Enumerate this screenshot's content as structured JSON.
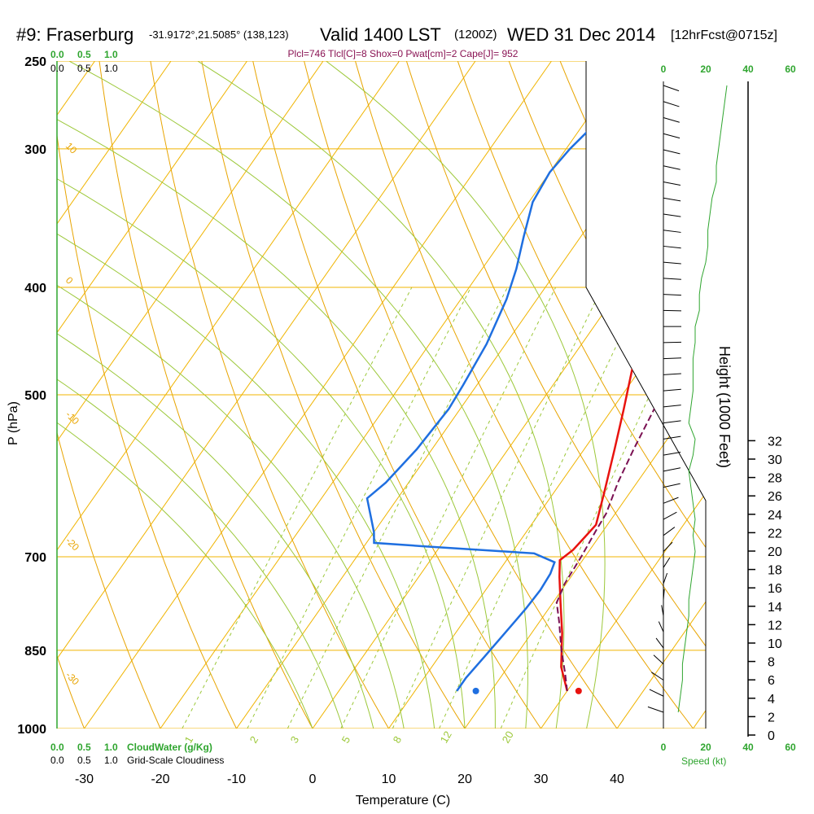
{
  "chart_data": {
    "type": "line",
    "title": {
      "station": "#9: Fraserburg",
      "coords": "-31.9172°,21.5085° (138,123)",
      "valid": "Valid 1400 LST",
      "utc": "(1200Z)",
      "date": "WED 31 Dec 2014",
      "forecast": "[12hrFcst@0715z]"
    },
    "subtitle": "Plcl=746 Tlcl[C]=8 Shox=0 Pwat[cm]=2 Cape[J]= 952",
    "xlabel": "Temperature (C)",
    "ylabel": "P (hPa)",
    "y2label": "Height (1000 Feet)",
    "xlim": [
      -35,
      45
    ],
    "ylim": [
      1000,
      250
    ],
    "yscale": "log",
    "x_ticks": [
      "-30",
      "-20",
      "-10",
      "0",
      "10",
      "20",
      "30",
      "40"
    ],
    "p_ticks": [
      "250",
      "300",
      "400",
      "500",
      "700",
      "850",
      "1000"
    ],
    "height_ticks": [
      "0",
      "2",
      "4",
      "6",
      "8",
      "10",
      "12",
      "14",
      "16",
      "18",
      "20",
      "22",
      "24",
      "26",
      "28",
      "30",
      "32"
    ],
    "cloud_scale": [
      "0.0",
      "0.5",
      "1.0"
    ],
    "cloud_water_label": "CloudWater (g/Kg)",
    "cloudiness_label": "Grid-Scale Cloudiness",
    "speed_label": "Speed (kt)",
    "speed_ticks": [
      "0",
      "20",
      "40",
      "60"
    ],
    "dry_adiabat_labels": [
      "10",
      "0",
      "-10",
      "-20",
      "-30"
    ],
    "moist_adiabat_labels": [
      "0",
      "10",
      "20",
      "30"
    ],
    "mixing_ratio_labels": [
      "1",
      "2",
      "3",
      "5",
      "8",
      "12",
      "20"
    ],
    "grid": true,
    "series": [
      {
        "color": "#e8130f",
        "points": [
          [
            30,
            925
          ],
          [
            27,
            880
          ],
          [
            24,
            820
          ],
          [
            21,
            770
          ],
          [
            18.5,
            730
          ],
          [
            17,
            705
          ],
          [
            17.8,
            690
          ],
          [
            18.2,
            670
          ],
          [
            18.5,
            655
          ],
          [
            16.5,
            610
          ],
          [
            14,
            560
          ],
          [
            11.5,
            515
          ],
          [
            9,
            475
          ],
          [
            7,
            440
          ],
          [
            5.5,
            410
          ],
          [
            4,
            380
          ],
          [
            3,
            350
          ],
          [
            2,
            320
          ],
          [
            1.2,
            295
          ],
          [
            0.5,
            270
          ]
        ]
      },
      {
        "color": "#1f6fe0",
        "points": [
          [
            15.5,
            925
          ],
          [
            15.5,
            900
          ],
          [
            16,
            860
          ],
          [
            16.5,
            820
          ],
          [
            17,
            780
          ],
          [
            17.2,
            750
          ],
          [
            17,
            725
          ],
          [
            16.5,
            708
          ],
          [
            13,
            695
          ],
          [
            -2,
            685
          ],
          [
            -9,
            680
          ],
          [
            -10,
            665
          ],
          [
            -14,
            620
          ],
          [
            -13,
            600
          ],
          [
            -12,
            560
          ],
          [
            -11.5,
            515
          ],
          [
            -11.8,
            490
          ],
          [
            -12.5,
            450
          ],
          [
            -14,
            410
          ],
          [
            -15.5,
            385
          ],
          [
            -17.5,
            360
          ],
          [
            -19.5,
            335
          ],
          [
            -20,
            315
          ],
          [
            -19.5,
            300
          ],
          [
            -18.5,
            285
          ],
          [
            -16.5,
            268
          ]
        ]
      },
      {
        "color": "#7a1052",
        "points": [
          [
            30,
            925
          ],
          [
            28,
            890
          ],
          [
            25.5,
            850
          ],
          [
            22.5,
            800
          ],
          [
            20.5,
            770
          ],
          [
            19.8,
            740
          ],
          [
            19.5,
            700
          ],
          [
            19,
            660
          ],
          [
            18.8,
            640
          ],
          [
            17.5,
            600
          ],
          [
            16.5,
            560
          ],
          [
            15.5,
            515
          ],
          [
            14.8,
            490
          ],
          [
            13,
            440
          ],
          [
            11,
            400
          ],
          [
            9.5,
            370
          ],
          [
            8.2,
            345
          ],
          [
            6.8,
            320
          ],
          [
            5.2,
            300
          ],
          [
            3.2,
            280
          ],
          [
            1.5,
            268
          ]
        ]
      }
    ],
    "points": [
      {
        "color": "#e8130f",
        "t": 31.5,
        "p": 925
      },
      {
        "color": "#1f6fe0",
        "t": 18,
        "p": 925
      }
    ],
    "wind_speed_kt": [
      7,
      8,
      9,
      9,
      10,
      11,
      12,
      12,
      13,
      14,
      15,
      14,
      15,
      14,
      13,
      12,
      14,
      15,
      12,
      13,
      14,
      14,
      14,
      15,
      15,
      17,
      17,
      18,
      20,
      21,
      21,
      22,
      23,
      25,
      25,
      26,
      27,
      28,
      29,
      30
    ]
  },
  "colors": {
    "isotherm": "#f0b400",
    "dry_adiabat": "#e8a400",
    "moist_adiabat": "#9cc83a",
    "mixing_ratio": "#9cc83a",
    "cloud": "#2fa52f",
    "temperature": "#e8130f",
    "dewpoint": "#1f6fe0",
    "parcel": "#7a1052"
  }
}
